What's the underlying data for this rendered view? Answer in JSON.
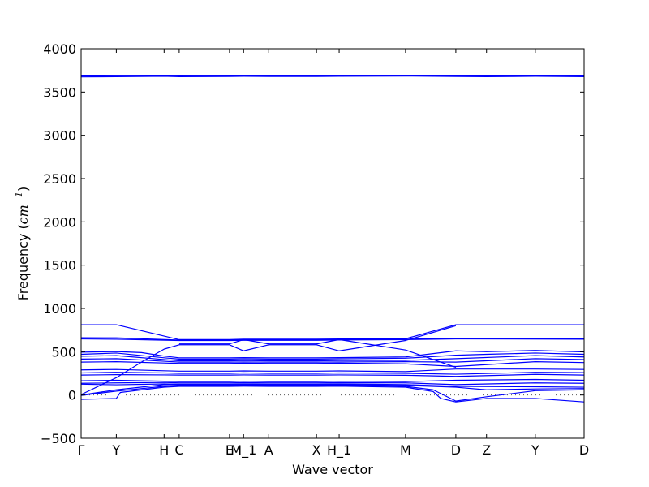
{
  "chart_data": {
    "type": "line",
    "title": "",
    "xlabel": "Wave vector",
    "ylabel": "Frequency (cm⁻¹)",
    "ylabel_parts": {
      "prefix": "Frequency (",
      "unit": "cm",
      "power": "−1",
      "suffix": ")"
    },
    "ylim": [
      -500,
      4000
    ],
    "yticks": [
      -500,
      0,
      500,
      1000,
      1500,
      2000,
      2500,
      3000,
      3500,
      4000
    ],
    "xlim": [
      0,
      100
    ],
    "x_ticks": [
      {
        "label": "Γ",
        "x": 0
      },
      {
        "label": "Y",
        "x": 7
      },
      {
        "label": "H",
        "x": 16.5
      },
      {
        "label": "C",
        "x": 19.5
      },
      {
        "label": "E",
        "x": 29.5
      },
      {
        "label": "M_1",
        "x": 32.3
      },
      {
        "label": "A",
        "x": 37.3
      },
      {
        "label": "X",
        "x": 46.8
      },
      {
        "label": "H_1",
        "x": 51.3
      },
      {
        "label": "M",
        "x": 64.5
      },
      {
        "label": "D",
        "x": 74.5
      },
      {
        "label": "Z",
        "x": 80.6
      },
      {
        "label": "Y",
        "x": 90.3
      },
      {
        "label": "D",
        "x": 100
      }
    ],
    "grid": false,
    "legend": "none",
    "colors": {
      "bands": "#0000ff",
      "zero_line": "#555555",
      "axes": "#000000"
    },
    "series": [
      {
        "values": [
          [
            0,
            3675
          ],
          [
            7,
            3678
          ],
          [
            16.5,
            3682
          ],
          [
            19.5,
            3678
          ],
          [
            29.5,
            3680
          ],
          [
            32.3,
            3682
          ],
          [
            37.3,
            3680
          ],
          [
            46.8,
            3680
          ],
          [
            51.3,
            3682
          ],
          [
            64.5,
            3685
          ],
          [
            74.5,
            3680
          ],
          [
            80.6,
            3678
          ],
          [
            90.3,
            3682
          ],
          [
            100,
            3678
          ]
        ]
      },
      {
        "values": [
          [
            0,
            3685
          ],
          [
            7,
            3688
          ],
          [
            16.5,
            3690
          ],
          [
            19.5,
            3687
          ],
          [
            29.5,
            3688
          ],
          [
            32.3,
            3690
          ],
          [
            37.3,
            3688
          ],
          [
            46.8,
            3688
          ],
          [
            51.3,
            3690
          ],
          [
            64.5,
            3692
          ],
          [
            74.5,
            3688
          ],
          [
            80.6,
            3686
          ],
          [
            90.3,
            3690
          ],
          [
            100,
            3686
          ]
        ]
      },
      {
        "values": [
          [
            0,
            812
          ],
          [
            7,
            812
          ],
          [
            19.5,
            640
          ],
          [
            29.5,
            640
          ],
          [
            32.3,
            645
          ],
          [
            37.3,
            645
          ],
          [
            46.8,
            645
          ],
          [
            51.3,
            648
          ],
          [
            64.5,
            650
          ],
          [
            74.5,
            812
          ],
          [
            100,
            812
          ]
        ]
      },
      {
        "values": [
          [
            0,
            662
          ],
          [
            7,
            660
          ],
          [
            19.5,
            635
          ],
          [
            29.5,
            635
          ],
          [
            32.3,
            638
          ],
          [
            37.3,
            640
          ],
          [
            46.8,
            640
          ],
          [
            51.3,
            640
          ],
          [
            64.5,
            645
          ],
          [
            74.5,
            655
          ],
          [
            100,
            652
          ]
        ]
      },
      {
        "values": [
          [
            0,
            648
          ],
          [
            7,
            645
          ],
          [
            19.5,
            630
          ],
          [
            29.5,
            630
          ],
          [
            32.3,
            632
          ],
          [
            37.3,
            632
          ],
          [
            46.8,
            632
          ],
          [
            51.3,
            635
          ],
          [
            64.5,
            640
          ],
          [
            74.5,
            648
          ],
          [
            100,
            645
          ]
        ]
      },
      {
        "values": [
          [
            0,
            495
          ],
          [
            7,
            502
          ],
          [
            12,
            490
          ],
          [
            16.5,
            450
          ],
          [
            19.5,
            430
          ],
          [
            29.5,
            430
          ],
          [
            32.3,
            432
          ],
          [
            37.3,
            430
          ],
          [
            46.8,
            430
          ],
          [
            51.3,
            432
          ],
          [
            64.5,
            440
          ],
          [
            74.5,
            510
          ],
          [
            80.6,
            500
          ],
          [
            90.3,
            515
          ],
          [
            100,
            498
          ]
        ]
      },
      {
        "values": [
          [
            0,
            470
          ],
          [
            7,
            485
          ],
          [
            16.5,
            430
          ],
          [
            19.5,
            415
          ],
          [
            29.5,
            415
          ],
          [
            32.3,
            418
          ],
          [
            37.3,
            415
          ],
          [
            46.8,
            415
          ],
          [
            51.3,
            418
          ],
          [
            64.5,
            425
          ],
          [
            74.5,
            460
          ],
          [
            80.6,
            470
          ],
          [
            90.3,
            485
          ],
          [
            100,
            470
          ]
        ]
      },
      {
        "values": [
          [
            0,
            448
          ],
          [
            7,
            455
          ],
          [
            16.5,
            410
          ],
          [
            19.5,
            395
          ],
          [
            29.5,
            395
          ],
          [
            32.3,
            398
          ],
          [
            37.3,
            395
          ],
          [
            46.8,
            395
          ],
          [
            51.3,
            398
          ],
          [
            64.5,
            400
          ],
          [
            74.5,
            420
          ],
          [
            90.3,
            455
          ],
          [
            100,
            440
          ]
        ]
      },
      {
        "values": [
          [
            0,
            415
          ],
          [
            7,
            420
          ],
          [
            16.5,
            390
          ],
          [
            19.5,
            380
          ],
          [
            29.5,
            380
          ],
          [
            32.3,
            382
          ],
          [
            37.3,
            380
          ],
          [
            46.8,
            380
          ],
          [
            51.3,
            382
          ],
          [
            64.5,
            385
          ],
          [
            74.5,
            380
          ],
          [
            90.3,
            420
          ],
          [
            100,
            410
          ]
        ]
      },
      {
        "values": [
          [
            0,
            380
          ],
          [
            7,
            385
          ],
          [
            16.5,
            370
          ],
          [
            19.5,
            365
          ],
          [
            29.5,
            365
          ],
          [
            32.3,
            368
          ],
          [
            37.3,
            365
          ],
          [
            46.8,
            365
          ],
          [
            51.3,
            368
          ],
          [
            64.5,
            360
          ],
          [
            74.5,
            330
          ],
          [
            90.3,
            385
          ],
          [
            100,
            375
          ]
        ]
      },
      {
        "values": [
          [
            0,
            290
          ],
          [
            7,
            295
          ],
          [
            16.5,
            280
          ],
          [
            19.5,
            275
          ],
          [
            29.5,
            275
          ],
          [
            32.3,
            278
          ],
          [
            37.3,
            275
          ],
          [
            46.8,
            275
          ],
          [
            51.3,
            278
          ],
          [
            64.5,
            270
          ],
          [
            74.5,
            300
          ],
          [
            90.3,
            300
          ],
          [
            100,
            295
          ]
        ]
      },
      {
        "values": [
          [
            0,
            255
          ],
          [
            7,
            262
          ],
          [
            16.5,
            255
          ],
          [
            19.5,
            250
          ],
          [
            29.5,
            250
          ],
          [
            32.3,
            255
          ],
          [
            37.3,
            250
          ],
          [
            46.8,
            250
          ],
          [
            51.3,
            255
          ],
          [
            64.5,
            250
          ],
          [
            74.5,
            240
          ],
          [
            90.3,
            262
          ],
          [
            100,
            258
          ]
        ]
      },
      {
        "values": [
          [
            0,
            230
          ],
          [
            7,
            235
          ],
          [
            16.5,
            232
          ],
          [
            19.5,
            230
          ],
          [
            29.5,
            230
          ],
          [
            32.3,
            232
          ],
          [
            37.3,
            230
          ],
          [
            46.8,
            230
          ],
          [
            51.3,
            232
          ],
          [
            64.5,
            228
          ],
          [
            74.5,
            215
          ],
          [
            90.3,
            238
          ],
          [
            100,
            230
          ]
        ]
      },
      {
        "values": [
          [
            0,
            165
          ],
          [
            7,
            170
          ],
          [
            16.5,
            160
          ],
          [
            19.5,
            155
          ],
          [
            29.5,
            155
          ],
          [
            32.3,
            160
          ],
          [
            37.3,
            155
          ],
          [
            46.8,
            155
          ],
          [
            51.3,
            160
          ],
          [
            64.5,
            155
          ],
          [
            74.5,
            170
          ],
          [
            90.3,
            180
          ],
          [
            100,
            170
          ]
        ]
      },
      {
        "values": [
          [
            0,
            135
          ],
          [
            7,
            140
          ],
          [
            16.5,
            145
          ],
          [
            19.5,
            140
          ],
          [
            29.5,
            140
          ],
          [
            32.3,
            142
          ],
          [
            37.3,
            140
          ],
          [
            46.8,
            140
          ],
          [
            51.3,
            142
          ],
          [
            64.5,
            140
          ],
          [
            74.5,
            120
          ],
          [
            90.3,
            140
          ],
          [
            100,
            135
          ]
        ]
      },
      {
        "values": [
          [
            0,
            125
          ],
          [
            7,
            118
          ],
          [
            16.5,
            128
          ],
          [
            19.5,
            125
          ],
          [
            29.5,
            125
          ],
          [
            32.3,
            128
          ],
          [
            37.3,
            125
          ],
          [
            46.8,
            125
          ],
          [
            51.3,
            128
          ],
          [
            64.5,
            120
          ],
          [
            74.5,
            100
          ],
          [
            90.3,
            95
          ],
          [
            100,
            90
          ]
        ]
      },
      {
        "values": [
          [
            0,
            0
          ],
          [
            7,
            60
          ],
          [
            16.5,
            120
          ],
          [
            19.5,
            118
          ],
          [
            29.5,
            118
          ],
          [
            32.3,
            120
          ],
          [
            37.3,
            118
          ],
          [
            46.8,
            118
          ],
          [
            51.3,
            120
          ],
          [
            64.5,
            110
          ],
          [
            74.5,
            90
          ],
          [
            80.6,
            60
          ],
          [
            90.3,
            70
          ],
          [
            100,
            75
          ]
        ]
      },
      {
        "values": [
          [
            0,
            -5
          ],
          [
            7,
            45
          ],
          [
            16.5,
            100
          ],
          [
            19.5,
            110
          ],
          [
            29.5,
            110
          ],
          [
            32.3,
            112
          ],
          [
            37.3,
            110
          ],
          [
            46.8,
            110
          ],
          [
            51.3,
            112
          ],
          [
            64.5,
            100
          ],
          [
            70,
            60
          ],
          [
            74.5,
            -70
          ],
          [
            80.6,
            -20
          ],
          [
            90.3,
            50
          ],
          [
            100,
            60
          ]
        ]
      },
      {
        "values": [
          [
            0,
            -50
          ],
          [
            7,
            -40
          ],
          [
            7.8,
            30
          ],
          [
            16.5,
            90
          ],
          [
            19.5,
            100
          ],
          [
            29.5,
            100
          ],
          [
            32.3,
            102
          ],
          [
            37.3,
            100
          ],
          [
            46.8,
            100
          ],
          [
            51.3,
            102
          ],
          [
            64.5,
            90
          ],
          [
            70,
            40
          ],
          [
            71.5,
            -40
          ],
          [
            74.5,
            -80
          ],
          [
            80.6,
            -40
          ],
          [
            90.3,
            -40
          ],
          [
            100,
            -80
          ]
        ]
      },
      {
        "values": [
          [
            0,
            5
          ],
          [
            7,
            200
          ],
          [
            12,
            380
          ],
          [
            16.5,
            530
          ],
          [
            19.5,
            580
          ],
          [
            29.5,
            580
          ],
          [
            32.3,
            510
          ],
          [
            37.3,
            580
          ],
          [
            46.8,
            580
          ],
          [
            51.3,
            510
          ],
          [
            64.5,
            630
          ],
          [
            74.5,
            800
          ]
        ]
      },
      {
        "values": [
          [
            19.5,
            590
          ],
          [
            29.5,
            590
          ],
          [
            32.3,
            640
          ],
          [
            37.3,
            590
          ],
          [
            46.8,
            590
          ],
          [
            51.3,
            640
          ],
          [
            64.5,
            520
          ],
          [
            74.5,
            320
          ]
        ]
      }
    ]
  }
}
